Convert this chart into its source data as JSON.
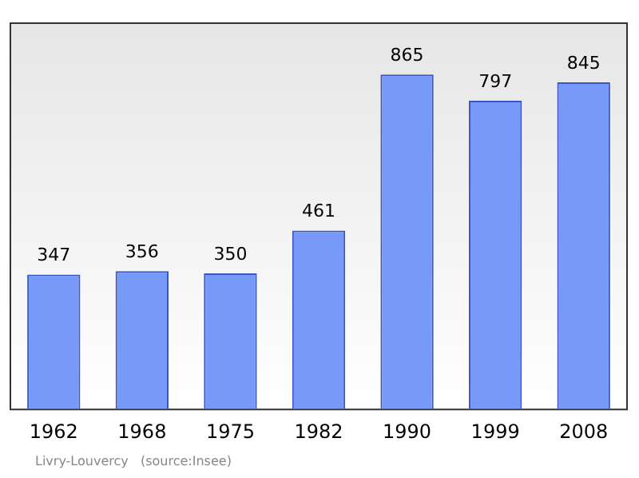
{
  "chart_data": {
    "type": "bar",
    "categories": [
      "1962",
      "1968",
      "1975",
      "1982",
      "1990",
      "1999",
      "2008"
    ],
    "values": [
      347,
      356,
      350,
      461,
      865,
      797,
      845
    ],
    "color": "#7799f7",
    "tick_labels": "x",
    "data_labels": true,
    "grid": false,
    "legend": false,
    "annotations": [
      "Livry-Louvercy   (source:Insee)"
    ]
  }
}
